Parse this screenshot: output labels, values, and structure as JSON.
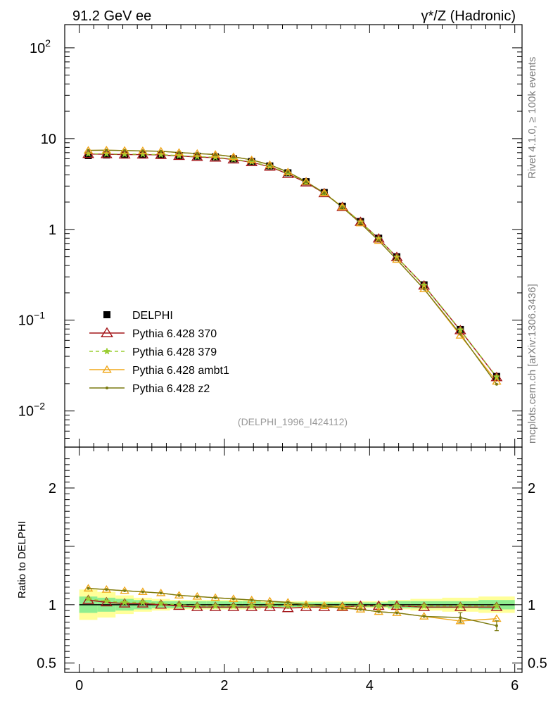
{
  "chart_data": {
    "type": "line",
    "title_left": "91.2 GeV ee",
    "title_right": "γ*/Z (Hadronic)",
    "side_label_top": "Rivet 4.1.0, ≥ 100k events",
    "side_label_bottom": "mcplots.cern.ch [arXiv:1306.3436]",
    "watermark": "(DELPHI_1996_I424112)",
    "ratio_ylabel": "Ratio to DELPHI",
    "xlim": [
      -0.2,
      6.1
    ],
    "ylim_main": [
      0.004,
      180
    ],
    "ylim_ratio": [
      0.42,
      2.35
    ],
    "x_ticks": [
      "0",
      "2",
      "4",
      "6"
    ],
    "y_ticks_main": [
      {
        "v": 0.01,
        "base": "10",
        "exp": "−2"
      },
      {
        "v": 0.1,
        "base": "10",
        "exp": "−1"
      },
      {
        "v": 1,
        "base": "1",
        "exp": ""
      },
      {
        "v": 10,
        "base": "10",
        "exp": ""
      },
      {
        "v": 100,
        "base": "10",
        "exp": "2"
      }
    ],
    "y_ticks_ratio": [
      {
        "v": 0.5,
        "label": "0.5"
      },
      {
        "v": 1,
        "label": "1"
      },
      {
        "v": 2,
        "label": "2"
      }
    ],
    "x": [
      0.125,
      0.375,
      0.625,
      0.875,
      1.125,
      1.375,
      1.625,
      1.875,
      2.125,
      2.375,
      2.625,
      2.875,
      3.125,
      3.375,
      3.625,
      3.875,
      4.125,
      4.375,
      4.75,
      5.25,
      5.75
    ],
    "data": {
      "name": "DELPHI",
      "values": [
        6.5,
        6.6,
        6.6,
        6.6,
        6.6,
        6.5,
        6.4,
        6.3,
        6.0,
        5.6,
        5.0,
        4.2,
        3.35,
        2.55,
        1.8,
        1.22,
        0.8,
        0.5,
        0.245,
        0.079,
        0.024
      ]
    },
    "band_inner": [
      0.07,
      0.06,
      0.05,
      0.04,
      0.03,
      0.03,
      0.03,
      0.03,
      0.03,
      0.03,
      0.02,
      0.02,
      0.02,
      0.02,
      0.02,
      0.02,
      0.02,
      0.03,
      0.03,
      0.03,
      0.04
    ],
    "band_outer": [
      0.13,
      0.11,
      0.08,
      0.06,
      0.05,
      0.04,
      0.04,
      0.04,
      0.04,
      0.04,
      0.03,
      0.03,
      0.03,
      0.03,
      0.03,
      0.03,
      0.03,
      0.04,
      0.05,
      0.06,
      0.07
    ],
    "series": [
      {
        "name": "Pythia 6.428 370",
        "color": "#a4161a",
        "marker": "triangle-open",
        "dash": "",
        "ratio": [
          1.04,
          1.02,
          1.01,
          1.01,
          1.0,
          0.99,
          0.98,
          0.98,
          0.98,
          0.98,
          0.98,
          0.97,
          0.98,
          0.98,
          0.98,
          0.99,
          0.99,
          0.99,
          0.98,
          0.98,
          0.98
        ]
      },
      {
        "name": "Pythia 6.428 379",
        "color": "#9acd32",
        "marker": "star",
        "dash": "5,4",
        "ratio": [
          1.05,
          1.03,
          1.02,
          1.02,
          1.01,
          1.0,
          0.99,
          0.99,
          0.99,
          0.99,
          0.99,
          0.99,
          0.99,
          0.99,
          0.99,
          0.99,
          0.99,
          0.99,
          0.99,
          0.99,
          0.99
        ]
      },
      {
        "name": "Pythia 6.428 ambt1",
        "color": "#f0a81c",
        "marker": "triangle-open-small",
        "dash": "",
        "ratio": [
          1.14,
          1.13,
          1.12,
          1.11,
          1.1,
          1.08,
          1.07,
          1.06,
          1.05,
          1.04,
          1.03,
          1.02,
          1.0,
          0.99,
          0.98,
          0.96,
          0.94,
          0.93,
          0.9,
          0.86,
          0.88
        ]
      },
      {
        "name": "Pythia 6.428 z2",
        "color": "#7a7a10",
        "marker": "dot",
        "dash": "",
        "ratio": [
          1.14,
          1.13,
          1.12,
          1.11,
          1.1,
          1.08,
          1.07,
          1.06,
          1.05,
          1.04,
          1.03,
          1.02,
          1.0,
          0.99,
          0.97,
          0.96,
          0.94,
          0.93,
          0.9,
          0.89,
          0.82
        ]
      }
    ]
  }
}
